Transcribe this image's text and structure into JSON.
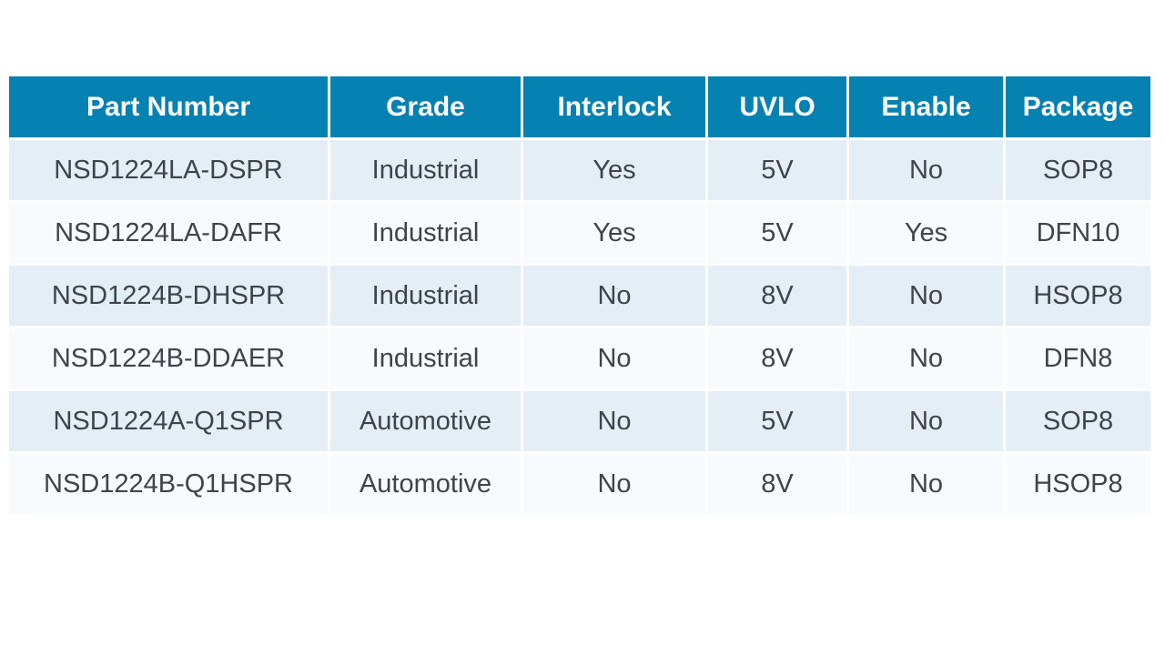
{
  "chart_data": {
    "type": "table",
    "columns": [
      "Part Number",
      "Grade",
      "Interlock",
      "UVLO",
      "Enable",
      "Package"
    ],
    "rows": [
      [
        "NSD1224LA-DSPR",
        "Industrial",
        "Yes",
        "5V",
        "No",
        "SOP8"
      ],
      [
        "NSD1224LA-DAFR",
        "Industrial",
        "Yes",
        "5V",
        "Yes",
        "DFN10"
      ],
      [
        "NSD1224B-DHSPR",
        "Industrial",
        "No",
        "8V",
        "No",
        "HSOP8"
      ],
      [
        "NSD1224B-DDAER",
        "Industrial",
        "No",
        "8V",
        "No",
        "DFN8"
      ],
      [
        "NSD1224A-Q1SPR",
        "Automotive",
        "No",
        "5V",
        "No",
        "SOP8"
      ],
      [
        "NSD1224B-Q1HSPR",
        "Automotive",
        "No",
        "8V",
        "No",
        "HSOP8"
      ]
    ],
    "layout": {
      "legend": "none",
      "grid": "white cell gaps, zebra striped rows, centered text"
    }
  },
  "colors": {
    "header_bg": "#0581b2",
    "header_text": "#ffffff",
    "row_odd_bg": "#e4eef6",
    "row_even_bg": "#f8fbfd",
    "body_text": "#3d444b",
    "page_bg": "#ffffff"
  }
}
